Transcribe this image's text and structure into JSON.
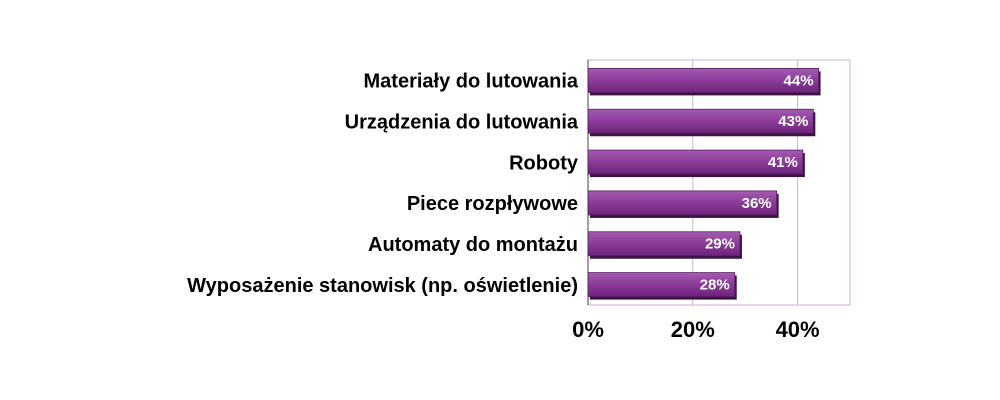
{
  "chart_data": {
    "type": "bar",
    "orientation": "horizontal",
    "categories": [
      "Materiały do lutowania",
      "Urządzenia do lutowania",
      "Roboty",
      "Piece rozpływowe",
      "Automaty do montażu",
      "Wyposażenie stanowisk (np. oświetlenie)"
    ],
    "values": [
      44,
      43,
      41,
      36,
      29,
      28
    ],
    "value_labels": [
      "44%",
      "43%",
      "41%",
      "36%",
      "29%",
      "28%"
    ],
    "color": "#8a3c98",
    "xlim": [
      0,
      50
    ],
    "xticks": [
      {
        "value": 0,
        "label": "0%"
      },
      {
        "value": 20,
        "label": "20%"
      },
      {
        "value": 40,
        "label": "40%"
      }
    ],
    "grid": true
  }
}
